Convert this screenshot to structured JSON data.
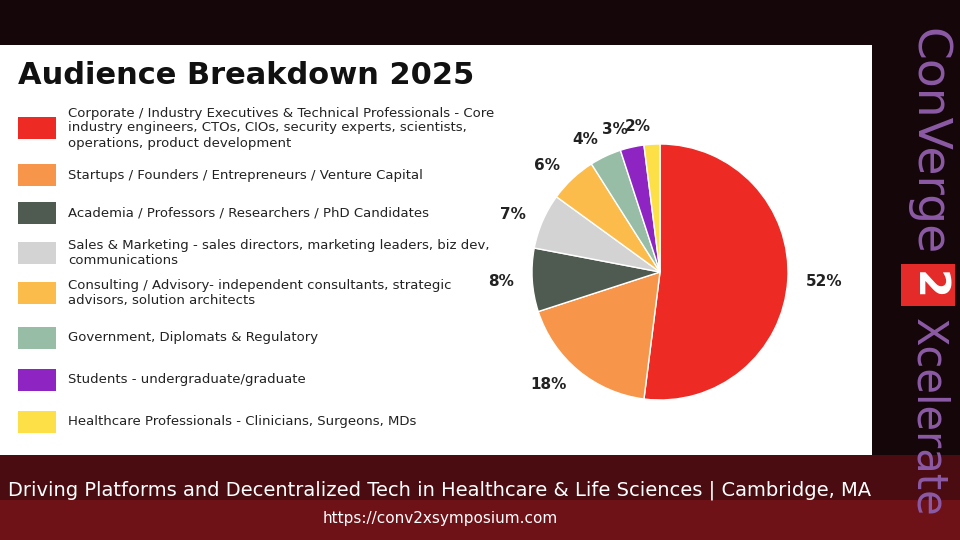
{
  "chart_data": {
    "type": "pie",
    "title": "Audience Breakdown 2025",
    "categories": [
      "Corporate / Industry Executives & Technical Professionals - Core industry engineers, CTOs, CIOs, security experts, scientists, operations, product development",
      "Startups / Founders / Entrepreneurs / Venture Capital",
      "Academia / Professors / Researchers / PhD Candidates",
      "Sales & Marketing - sales directors, marketing leaders, biz dev, communications",
      "Consulting / Advisory- independent consultants, strategic advisors, solution architects",
      "Government, Diplomats & Regulatory",
      "Students - undergraduate/graduate",
      "Healthcare Professionals - Clinicians, Surgeons, MDs"
    ],
    "values": [
      52,
      18,
      8,
      7,
      6,
      4,
      3,
      2
    ],
    "value_labels": [
      "52%",
      "18%",
      "8%",
      "7%",
      "6%",
      "4%",
      "3%",
      "2%"
    ],
    "colors": [
      "#ee2a24",
      "#f7964a",
      "#4f5b50",
      "#d3d3d3",
      "#fbbc4c",
      "#97bda7",
      "#8e25c2",
      "#fde047"
    ],
    "data_labels": true
  },
  "logo": [
    "ConVerge",
    "2",
    "Xcelerate"
  ],
  "footer": {
    "caption": "Driving Platforms and Decentralized Tech in Healthcare & Life Sciences | Cambridge, MA",
    "url": "https://conv2xsymposium.com"
  }
}
